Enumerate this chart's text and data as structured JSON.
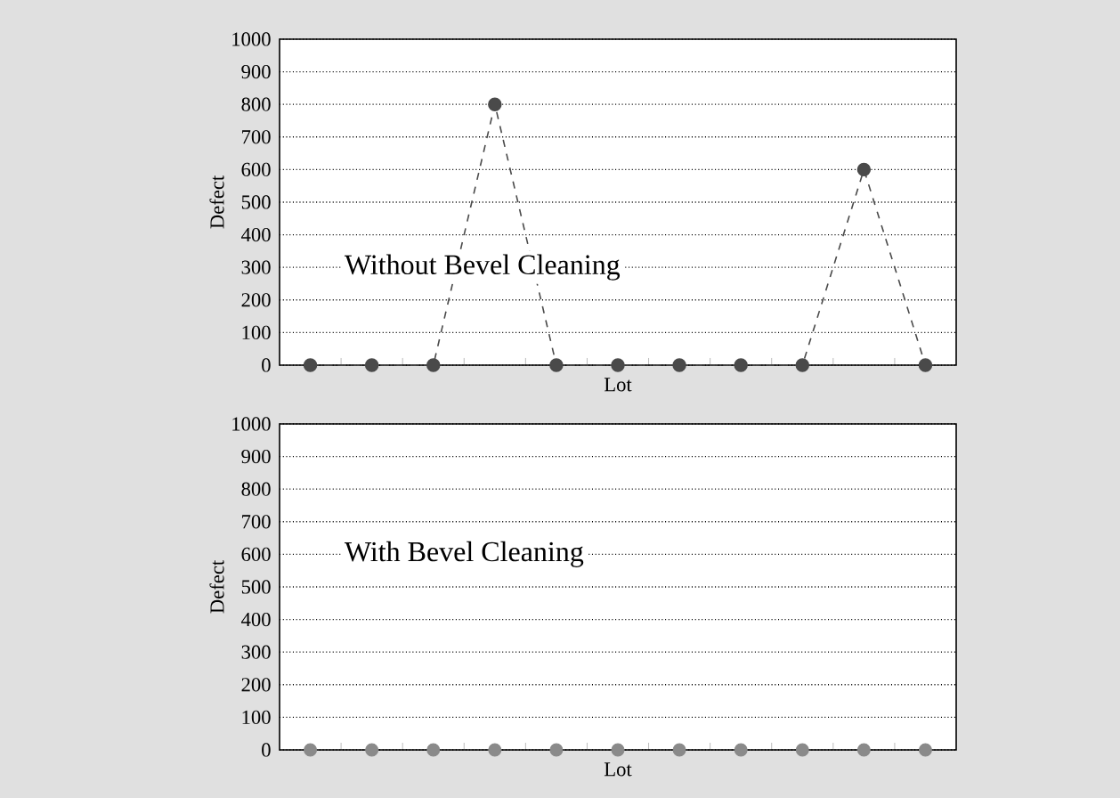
{
  "chart_data": [
    {
      "type": "line",
      "xlabel": "Lot",
      "ylabel": "Defect",
      "categories": [
        null,
        null,
        null,
        null,
        null,
        null,
        null,
        null,
        null,
        null,
        null
      ],
      "series": [
        {
          "color": "#4a4a4a",
          "values": [
            0,
            0,
            0,
            800,
            0,
            0,
            0,
            0,
            0,
            600,
            0
          ]
        }
      ],
      "ylim": [
        0,
        1000
      ],
      "yticks": [
        0,
        100,
        200,
        300,
        400,
        500,
        600,
        700,
        800,
        900,
        1000
      ],
      "grid": "y",
      "marker": "circle",
      "line_style": "dashed",
      "tick_labels": "y",
      "annotations": [
        "Without Bevel Cleaning"
      ]
    },
    {
      "type": "scatter",
      "xlabel": "Lot",
      "ylabel": "Defect",
      "categories": [
        null,
        null,
        null,
        null,
        null,
        null,
        null,
        null,
        null,
        null,
        null
      ],
      "series": [
        {
          "color": "#8a8a8a",
          "values": [
            0,
            0,
            0,
            0,
            0,
            0,
            0,
            0,
            0,
            0,
            0
          ]
        }
      ],
      "ylim": [
        0,
        1000
      ],
      "yticks": [
        0,
        100,
        200,
        300,
        400,
        500,
        600,
        700,
        800,
        900,
        1000
      ],
      "grid": "y",
      "marker": "circle",
      "tick_labels": "y",
      "annotations": [
        "With Bevel Cleaning"
      ]
    }
  ]
}
